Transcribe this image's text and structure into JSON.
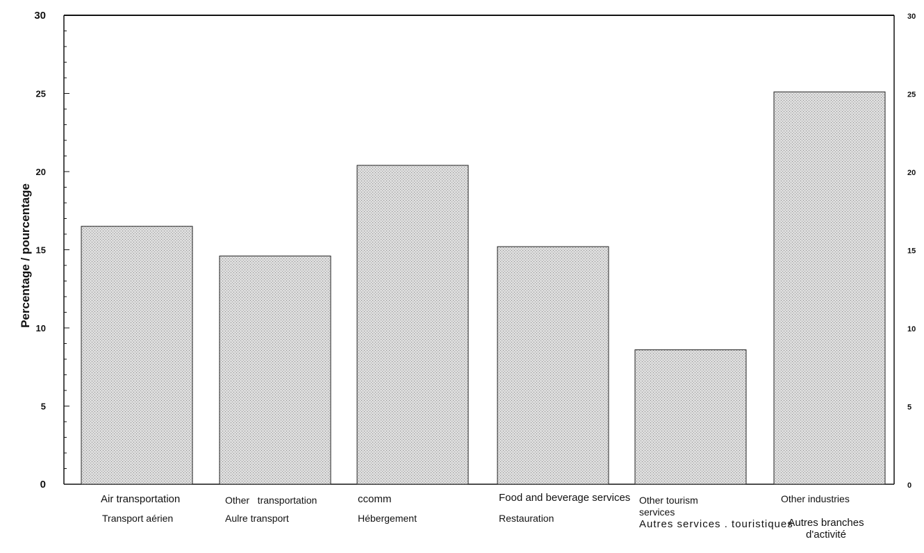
{
  "chart_data": {
    "type": "bar",
    "categories": [
      {
        "en": "Air transportation",
        "fr": "Transport aérien"
      },
      {
        "en": "Other   transportation",
        "fr": "Aulre transport"
      },
      {
        "en": "ccomm",
        "fr": "Hébergement"
      },
      {
        "en": "Food and beverage services",
        "fr": "Restauration"
      },
      {
        "en": "Other tourism services",
        "fr": "Autres services . touristiques"
      },
      {
        "en": "Other industries",
        "fr": "Autres branches d'activité"
      }
    ],
    "values": [
      16.5,
      14.6,
      20.4,
      15.2,
      8.6,
      25.1
    ],
    "ylabel": "Percentage / pourcentage",
    "ylim": [
      0,
      30
    ],
    "yticks_left": [
      "0",
      "5",
      "10",
      "15",
      "20",
      "25",
      "30"
    ],
    "yticks_right": [
      "0",
      "5",
      "10",
      "15",
      "20",
      "25",
      "30"
    ],
    "grid": false,
    "bar_color": "#d6d6d6"
  }
}
